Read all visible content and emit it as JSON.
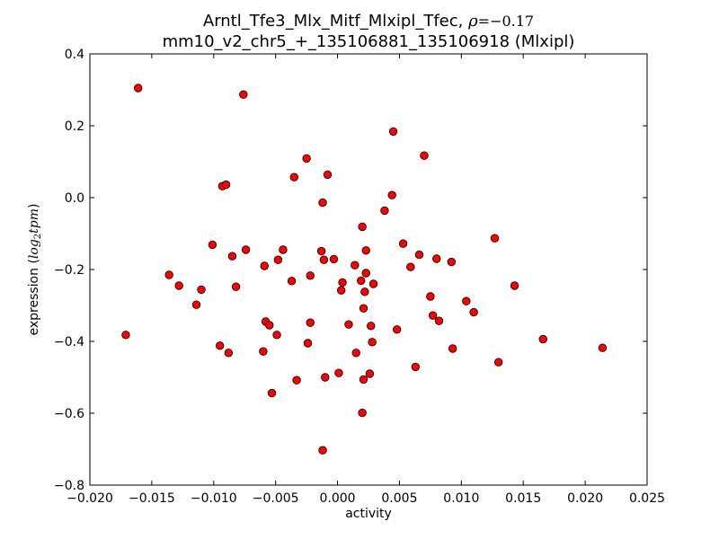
{
  "chart_data": {
    "type": "scatter",
    "title": "Arntl_Tfe3_Mlx_Mitf_Mlxipl_Tfec, ρ=−0.17",
    "title_main": "Arntl_Tfe3_Mlx_Mitf_Mlxipl_Tfec, ",
    "title_rho_symbol": "ρ",
    "title_rho_value": "=−0.17",
    "subtitle": "mm10_v2_chr5_+_135106881_135106918 (Mlxipl)",
    "xlabel": "activity",
    "ylabel_prefix": "expression (",
    "ylabel_log": "log",
    "ylabel_sub": "2",
    "ylabel_tpm": "tpm",
    "ylabel_suffix": ")",
    "xlim": [
      -0.02,
      0.025
    ],
    "ylim": [
      -0.8,
      0.4
    ],
    "xticks": [
      -0.02,
      -0.015,
      -0.01,
      -0.005,
      0.0,
      0.005,
      0.01,
      0.015,
      0.02,
      0.025
    ],
    "xtick_labels": [
      "−0.020",
      "−0.015",
      "−0.010",
      "−0.005",
      "0.000",
      "0.005",
      "0.010",
      "0.015",
      "0.020",
      "0.025"
    ],
    "yticks": [
      0.4,
      0.2,
      0.0,
      -0.2,
      -0.4,
      -0.6,
      -0.8
    ],
    "ytick_labels": [
      "0.4",
      "0.2",
      "0.0",
      "−0.2",
      "−0.4",
      "−0.6",
      "−0.8"
    ],
    "grid": false,
    "marker_color": "#ff0000",
    "marker_edge_color": "#000000",
    "points": [
      [
        -0.0161,
        0.305
      ],
      [
        -0.0076,
        0.287
      ],
      [
        -0.0171,
        -0.382
      ],
      [
        -0.0136,
        -0.215
      ],
      [
        -0.0128,
        -0.245
      ],
      [
        -0.0114,
        -0.298
      ],
      [
        -0.011,
        -0.256
      ],
      [
        -0.0101,
        -0.131
      ],
      [
        -0.0095,
        -0.412
      ],
      [
        -0.0093,
        0.032
      ],
      [
        -0.009,
        0.036
      ],
      [
        -0.0088,
        -0.432
      ],
      [
        -0.0085,
        -0.163
      ],
      [
        -0.0082,
        -0.248
      ],
      [
        -0.0074,
        -0.145
      ],
      [
        -0.006,
        -0.428
      ],
      [
        -0.0059,
        -0.19
      ],
      [
        -0.0058,
        -0.345
      ],
      [
        -0.0055,
        -0.355
      ],
      [
        -0.0053,
        -0.544
      ],
      [
        -0.0049,
        -0.382
      ],
      [
        -0.0048,
        -0.173
      ],
      [
        -0.0044,
        -0.145
      ],
      [
        -0.0037,
        -0.232
      ],
      [
        -0.0035,
        0.057
      ],
      [
        -0.0033,
        -0.508
      ],
      [
        -0.0025,
        0.109
      ],
      [
        -0.0024,
        -0.405
      ],
      [
        -0.0022,
        -0.217
      ],
      [
        -0.0022,
        -0.348
      ],
      [
        -0.0013,
        -0.149
      ],
      [
        -0.0012,
        -0.014
      ],
      [
        -0.0011,
        -0.173
      ],
      [
        -0.0012,
        -0.703
      ],
      [
        -0.001,
        -0.5
      ],
      [
        -0.0008,
        0.064
      ],
      [
        -0.0003,
        -0.171
      ],
      [
        0.0001,
        -0.488
      ],
      [
        0.0003,
        -0.258
      ],
      [
        0.0004,
        -0.236
      ],
      [
        0.0009,
        -0.353
      ],
      [
        0.0014,
        -0.188
      ],
      [
        0.0015,
        -0.432
      ],
      [
        0.0019,
        -0.231
      ],
      [
        0.002,
        -0.081
      ],
      [
        0.002,
        -0.599
      ],
      [
        0.0021,
        -0.308
      ],
      [
        0.0021,
        -0.506
      ],
      [
        0.0022,
        -0.262
      ],
      [
        0.0023,
        -0.21
      ],
      [
        0.0023,
        -0.147
      ],
      [
        0.0026,
        -0.49
      ],
      [
        0.0027,
        -0.357
      ],
      [
        0.0028,
        -0.402
      ],
      [
        0.0029,
        -0.24
      ],
      [
        0.0038,
        -0.036
      ],
      [
        0.0044,
        0.007
      ],
      [
        0.0045,
        0.184
      ],
      [
        0.0048,
        -0.367
      ],
      [
        0.0053,
        -0.128
      ],
      [
        0.0059,
        -0.193
      ],
      [
        0.0063,
        -0.471
      ],
      [
        0.0066,
        -0.159
      ],
      [
        0.007,
        0.117
      ],
      [
        0.0075,
        -0.275
      ],
      [
        0.0077,
        -0.328
      ],
      [
        0.008,
        -0.17
      ],
      [
        0.0082,
        -0.343
      ],
      [
        0.0092,
        -0.179
      ],
      [
        0.0093,
        -0.42
      ],
      [
        0.0104,
        -0.288
      ],
      [
        0.011,
        -0.319
      ],
      [
        0.0127,
        -0.113
      ],
      [
        0.013,
        -0.458
      ],
      [
        0.0143,
        -0.245
      ],
      [
        0.0166,
        -0.394
      ],
      [
        0.0214,
        -0.418
      ]
    ]
  }
}
